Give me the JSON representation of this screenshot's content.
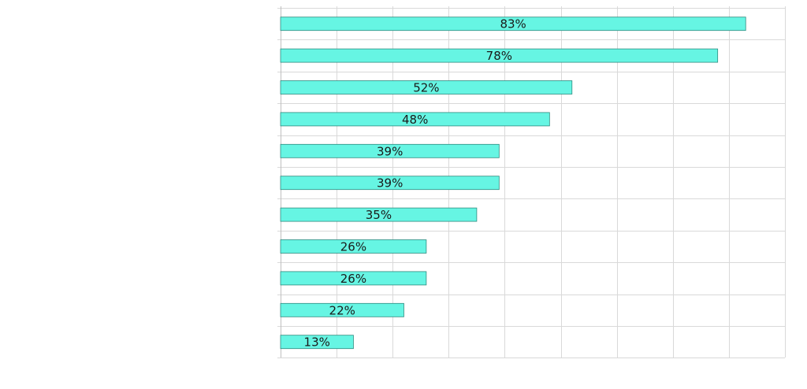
{
  "chart_data": {
    "type": "bar",
    "orientation": "horizontal",
    "title": "",
    "xlabel": "",
    "ylabel": "",
    "categories": [
      "",
      "",
      "",
      "",
      "",
      "",
      "",
      "",
      "",
      "",
      ""
    ],
    "values": [
      83,
      78,
      52,
      48,
      39,
      39,
      35,
      26,
      26,
      22,
      13
    ],
    "labels": [
      "83%",
      "78%",
      "52%",
      "48%",
      "39%",
      "39%",
      "35%",
      "26%",
      "26%",
      "22%",
      "13%"
    ],
    "xlim": [
      0,
      90
    ],
    "grid": true,
    "bar_color": "#66f5e3",
    "bar_edge_color": "#2e8b7f"
  }
}
